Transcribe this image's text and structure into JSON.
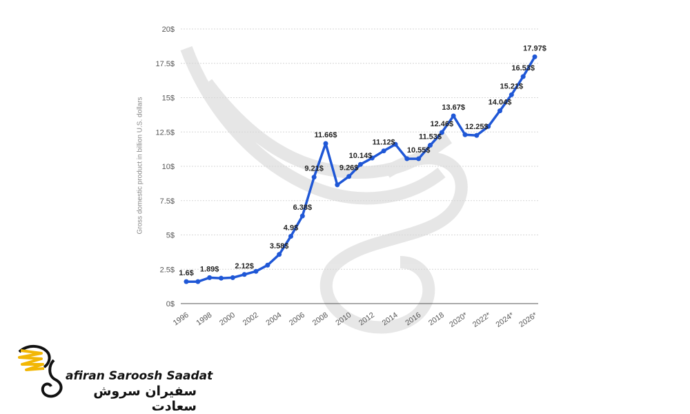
{
  "brand": {
    "name_en": "afiran Saroosh Saadat",
    "name_fa": "سفیران سروش سعادت",
    "logo_icon": "swan-wing-logo-icon",
    "logo_colors": [
      "#f2b705",
      "#111111"
    ]
  },
  "watermark_icon": "swan-wing-watermark-icon",
  "chart_data": {
    "type": "line",
    "ylabel": "Gross domestic product in billion U.S. dollars",
    "ylim": [
      0,
      20
    ],
    "y_ticks": [
      "0$",
      "2.5$",
      "5$",
      "7.5$",
      "10$",
      "12.5$",
      "15$",
      "17.5$",
      "20$"
    ],
    "y_tick_values": [
      0,
      2.5,
      5,
      7.5,
      10,
      12.5,
      15,
      17.5,
      20
    ],
    "x_ticks": [
      "1996",
      "1998",
      "2000",
      "2002",
      "2004",
      "2006",
      "2008",
      "2010",
      "2012",
      "2014",
      "2016",
      "2018",
      "2020*",
      "2022*",
      "2024*",
      "2026*"
    ],
    "grid": true,
    "line_color": "#1f57d6",
    "x": [
      1996,
      1997,
      1998,
      1999,
      2000,
      2001,
      2002,
      2003,
      2004,
      2005,
      2006,
      2007,
      2008,
      2009,
      2010,
      2011,
      2012,
      2013,
      2014,
      2015,
      2016,
      2017,
      2018,
      2019,
      2020,
      2021,
      2022,
      2023,
      2024,
      2025,
      2026
    ],
    "values": [
      1.6,
      1.6,
      1.89,
      1.85,
      1.89,
      2.12,
      2.35,
      2.8,
      3.58,
      4.9,
      6.38,
      9.21,
      11.66,
      8.65,
      9.26,
      10.14,
      10.6,
      11.12,
      11.6,
      10.55,
      10.55,
      11.53,
      12.46,
      13.67,
      12.3,
      12.25,
      12.9,
      14.04,
      15.21,
      16.53,
      17.97
    ],
    "data_labels": [
      {
        "x": 1996,
        "text": "1.6$"
      },
      {
        "x": 1998,
        "text": "1.89$"
      },
      {
        "x": 2001,
        "text": "2.12$"
      },
      {
        "x": 2004,
        "text": "3.58$"
      },
      {
        "x": 2005,
        "text": "4.9$"
      },
      {
        "x": 2006,
        "text": "6.38$"
      },
      {
        "x": 2007,
        "text": "9.21$"
      },
      {
        "x": 2008,
        "text": "11.66$"
      },
      {
        "x": 2010,
        "text": "9.26$"
      },
      {
        "x": 2011,
        "text": "10.14$"
      },
      {
        "x": 2013,
        "text": "11.12$"
      },
      {
        "x": 2016,
        "text": "10.55$"
      },
      {
        "x": 2017,
        "text": "11.53$"
      },
      {
        "x": 2018,
        "text": "12.46$"
      },
      {
        "x": 2019,
        "text": "13.67$"
      },
      {
        "x": 2021,
        "text": "12.25$"
      },
      {
        "x": 2023,
        "text": "14.04$"
      },
      {
        "x": 2024,
        "text": "15.21$"
      },
      {
        "x": 2025,
        "text": "16.53$"
      },
      {
        "x": 2026,
        "text": "17.97$"
      }
    ]
  }
}
